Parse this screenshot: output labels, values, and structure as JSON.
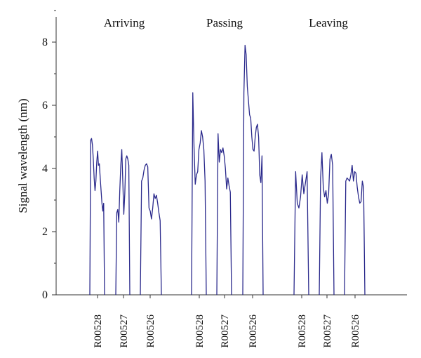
{
  "chart_data": {
    "type": "line",
    "title": "",
    "xlabel": "",
    "ylabel": "Signal wavelength (nm)",
    "ylim": [
      0,
      8.8
    ],
    "yticks": [
      0,
      2,
      4,
      6,
      8
    ],
    "grid": false,
    "legend": "none",
    "line_color": "#2b2a8c",
    "groups": [
      {
        "label": "Arriving",
        "sensors": [
          {
            "name": "R00528",
            "values": [
              0,
              4.9,
              4.95,
              4.75,
              4.3,
              3.7,
              3.3,
              3.6,
              4.2,
              4.55,
              4.1,
              4.15,
              3.7,
              3.3,
              2.9,
              2.65,
              2.9,
              0
            ]
          },
          {
            "name": "R00527",
            "values": [
              0,
              2.6,
              2.7,
              2.3,
              3.3,
              4.1,
              4.6,
              3.6,
              2.55,
              3.2,
              4.3,
              4.4,
              4.3,
              4.1,
              0
            ]
          },
          {
            "name": "R00526",
            "values": [
              0,
              3.6,
              3.7,
              3.95,
              4.1,
              4.15,
              4.05,
              2.75,
              2.65,
              2.4,
              2.75,
              3.2,
              3.05,
              3.15,
              2.9,
              2.6,
              2.35,
              0
            ]
          }
        ]
      },
      {
        "label": "Passing",
        "sensors": [
          {
            "name": "R00528",
            "values": [
              0,
              6.4,
              4.7,
              3.5,
              3.8,
              3.9,
              4.6,
              4.8,
              5.2,
              5.0,
              4.6,
              3.6,
              0
            ]
          },
          {
            "name": "R00527",
            "values": [
              0,
              5.1,
              4.2,
              4.6,
              4.5,
              4.65,
              4.4,
              4.0,
              3.35,
              3.7,
              3.45,
              3.25,
              0
            ]
          },
          {
            "name": "R00526",
            "values": [
              0,
              6.4,
              7.9,
              7.6,
              6.6,
              6.15,
              5.7,
              5.6,
              5.0,
              4.6,
              4.55,
              5.0,
              5.3,
              5.4,
              5.0,
              3.8,
              3.55,
              4.4,
              0
            ]
          }
        ]
      },
      {
        "label": "Leaving",
        "sensors": [
          {
            "name": "R00528",
            "values": [
              0,
              3.9,
              2.9,
              2.75,
              3.1,
              3.8,
              3.2,
              3.55,
              3.9,
              0
            ]
          },
          {
            "name": "R00527",
            "values": [
              0,
              3.7,
              4.5,
              3.4,
              3.1,
              3.3,
              2.9,
              3.2,
              4.3,
              4.45,
              4.1,
              0
            ]
          },
          {
            "name": "R00526",
            "values": [
              0,
              3.6,
              3.7,
              3.65,
              3.6,
              3.8,
              4.1,
              3.6,
              3.9,
              3.85,
              3.4,
              3.1,
              2.9,
              2.95,
              3.6,
              3.4,
              0
            ]
          }
        ]
      }
    ]
  }
}
